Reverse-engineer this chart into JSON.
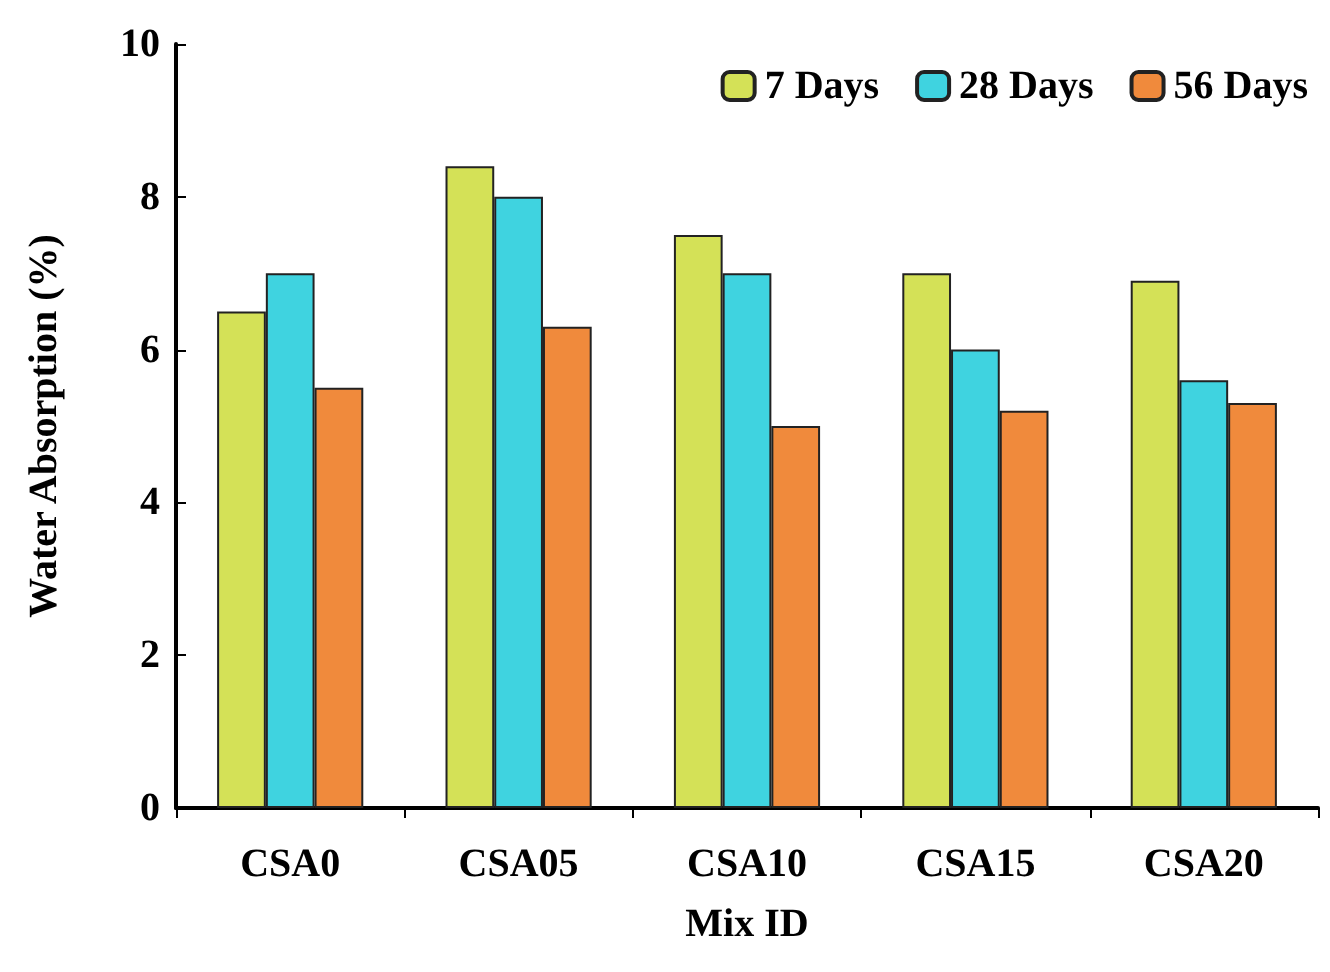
{
  "chart_data": {
    "type": "bar",
    "xlabel": "Mix ID",
    "ylabel": "Water Absorption (%)",
    "categories": [
      "CSA0",
      "CSA05",
      "CSA10",
      "CSA15",
      "CSA20"
    ],
    "series": [
      {
        "name": "7 Days",
        "color": "#d4e157",
        "values": [
          6.5,
          8.4,
          7.5,
          7.0,
          6.9
        ]
      },
      {
        "name": "28 Days",
        "color": "#3fd3e0",
        "values": [
          7.0,
          8.0,
          7.0,
          6.0,
          5.6
        ]
      },
      {
        "name": "56 Days",
        "color": "#f08a3c",
        "values": [
          5.5,
          6.3,
          5.0,
          5.2,
          5.3
        ]
      }
    ],
    "ylim": [
      0,
      10
    ],
    "yticks": [
      0,
      2,
      4,
      6,
      8,
      10
    ],
    "grid": false,
    "legend": "top right"
  }
}
